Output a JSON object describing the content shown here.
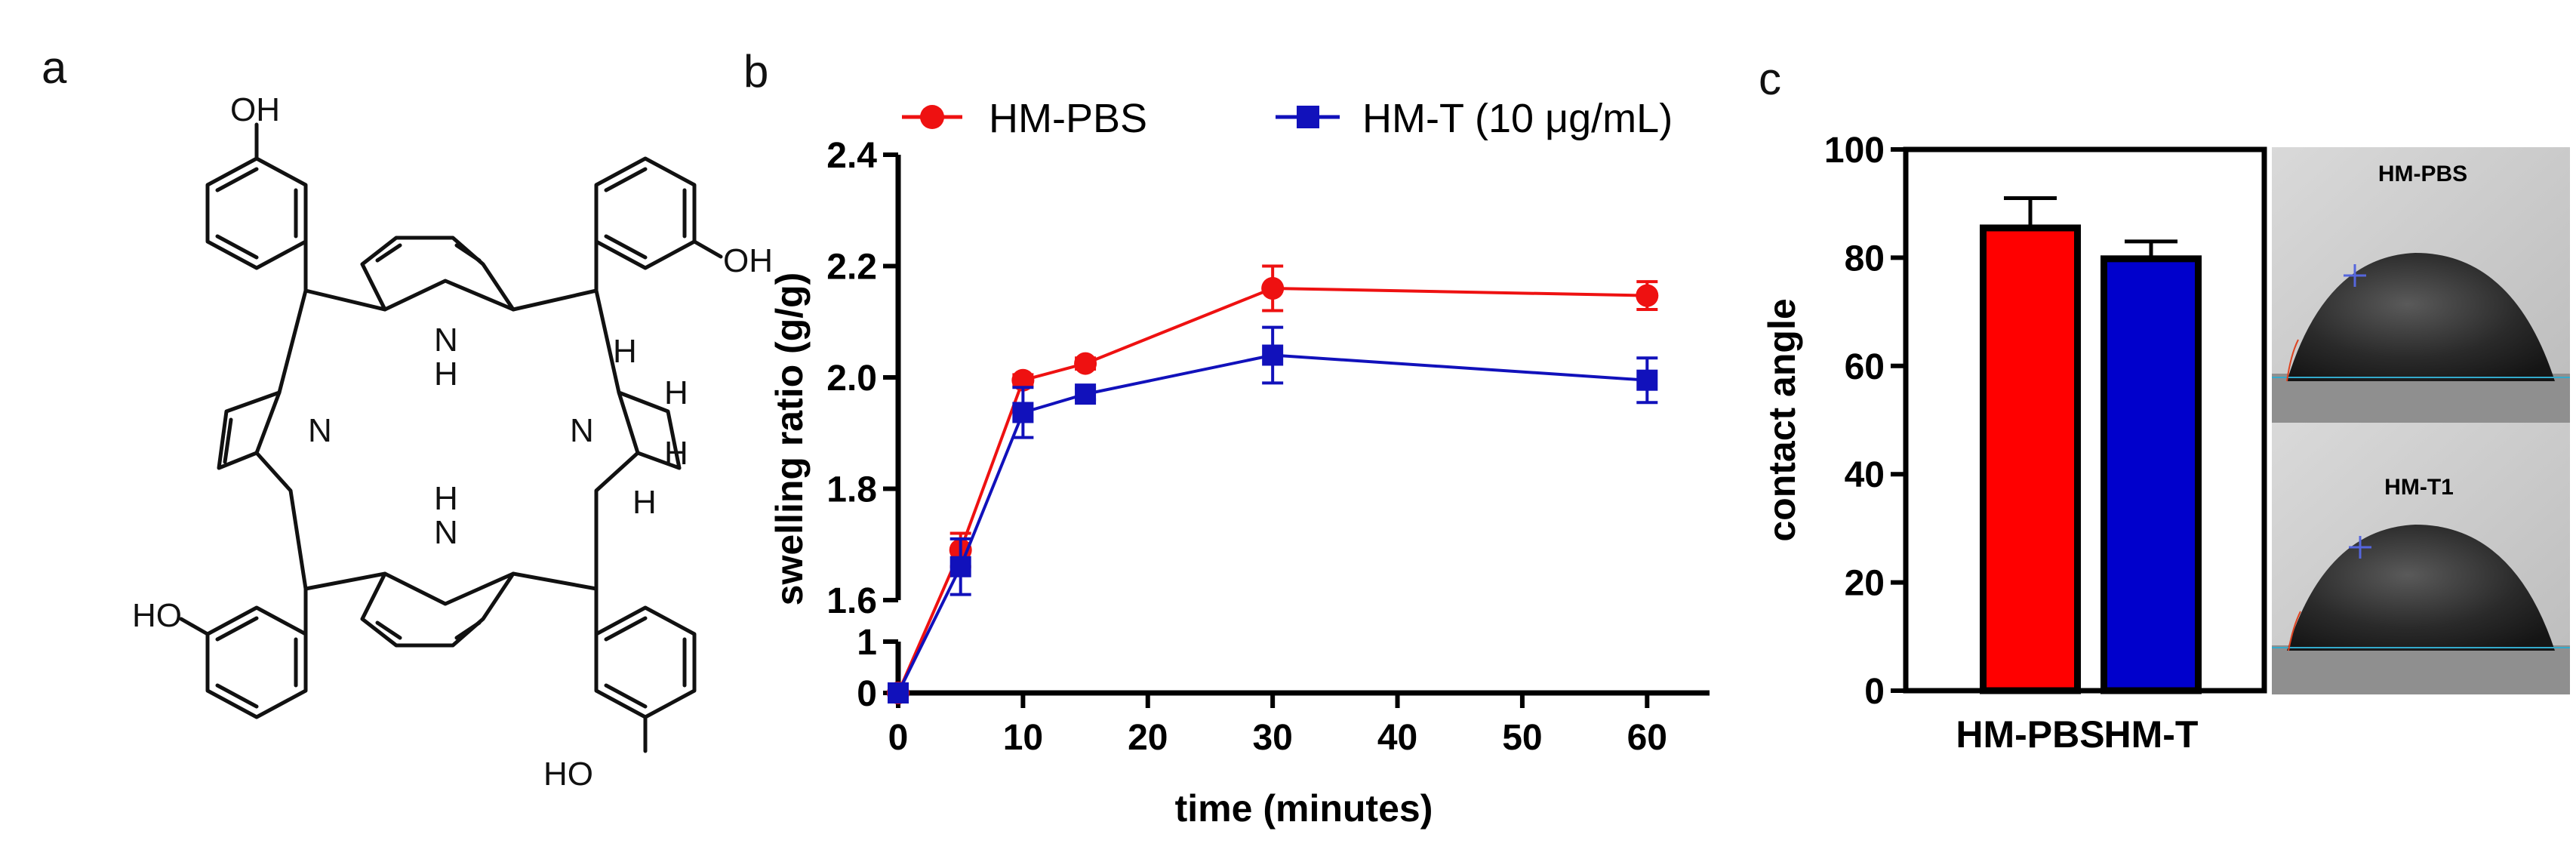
{
  "panels": {
    "a": "a",
    "b": "b",
    "c": "c"
  },
  "molecule": {
    "labels": {
      "oh_top": "OH",
      "oh_right": "OH",
      "ho_left": "HO",
      "ho_bottom": "HO",
      "n": "N",
      "nh": "N",
      "h": "H"
    }
  },
  "chart_data": [
    {
      "type": "line",
      "xlabel": "time (minutes)",
      "ylabel": "swelling ratio (g/g)",
      "x": [
        0,
        5,
        10,
        15,
        30,
        60
      ],
      "xlim": [
        0,
        65
      ],
      "xticks": [
        0,
        10,
        20,
        30,
        40,
        50,
        60
      ],
      "ylim_lower": [
        0,
        1
      ],
      "ylim_upper": [
        1.6,
        2.4
      ],
      "yticks_lower": [
        0,
        1
      ],
      "yticks_upper": [
        1.6,
        1.8,
        2.0,
        2.2,
        2.4
      ],
      "ytick_labels_upper": [
        "1.6",
        "1.8",
        "2.0",
        "2.2",
        "2.4"
      ],
      "axis_break": true,
      "legend_position": "top",
      "series": [
        {
          "name": "HM-PBS",
          "color": "#ee1111",
          "marker": "circle",
          "values": [
            0,
            1.69,
            1.995,
            2.025,
            2.16,
            2.147
          ],
          "errors": [
            0,
            0.03,
            0.01,
            0.01,
            0.04,
            0.025
          ]
        },
        {
          "name": "HM-T (10 μg/mL)",
          "color": "#1111bb",
          "marker": "square",
          "values": [
            0,
            1.66,
            1.937,
            1.97,
            2.04,
            1.995
          ],
          "errors": [
            0,
            0.05,
            0.045,
            0.01,
            0.05,
            0.04
          ]
        }
      ]
    },
    {
      "type": "bar",
      "ylabel": "contact angle",
      "categories": [
        "HM-PBS",
        "HM-T"
      ],
      "values": [
        85.5,
        79.8
      ],
      "errors": [
        5.5,
        3.2
      ],
      "colors": [
        "#ff0000",
        "#0000cc"
      ],
      "ylim": [
        0,
        100
      ],
      "yticks": [
        0,
        20,
        40,
        60,
        80,
        100
      ],
      "inset_images": [
        "HM-PBS",
        "HM-T1"
      ]
    }
  ]
}
